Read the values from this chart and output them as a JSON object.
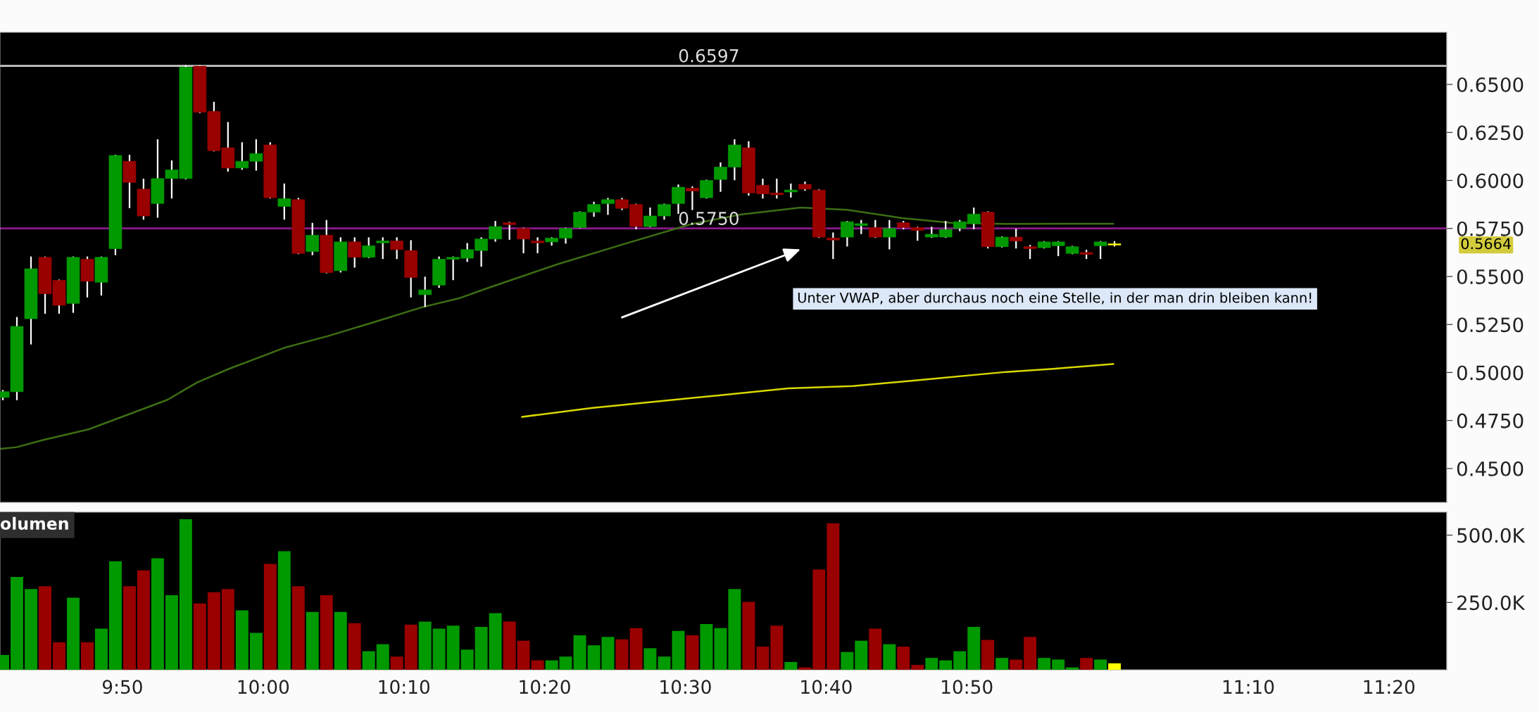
{
  "chart_data": [
    {
      "type": "candlestick",
      "xlim": [
        9.6883,
        11.4017
      ],
      "ylim": [
        0.4324,
        0.6771
      ],
      "yticks": [
        {
          "value": 0.45,
          "label": "0.4500"
        },
        {
          "value": 0.475,
          "label": "0.4750"
        },
        {
          "value": 0.5,
          "label": "0.5000"
        },
        {
          "value": 0.525,
          "label": "0.5250"
        },
        {
          "value": 0.55,
          "label": "0.5500"
        },
        {
          "value": 0.575,
          "label": "0.5750"
        },
        {
          "value": 0.6,
          "label": "0.6000"
        },
        {
          "value": 0.625,
          "label": "0.6250"
        },
        {
          "value": 0.65,
          "label": "0.6500"
        }
      ],
      "tick_labels": "y",
      "grid": false,
      "legend": false,
      "x": [
        9.6917,
        9.7083,
        9.725,
        9.7417,
        9.7583,
        9.775,
        9.7917,
        9.8083,
        9.825,
        9.8417,
        9.8583,
        9.875,
        9.8917,
        9.9083,
        9.925,
        9.9417,
        9.9583,
        9.975,
        9.9917,
        10.0083,
        10.025,
        10.0417,
        10.0583,
        10.075,
        10.0917,
        10.1083,
        10.125,
        10.1417,
        10.1583,
        10.175,
        10.1917,
        10.2083,
        10.225,
        10.2417,
        10.2583,
        10.275,
        10.2917,
        10.3083,
        10.325,
        10.3417,
        10.3583,
        10.375,
        10.3917,
        10.4083,
        10.425,
        10.4417,
        10.4583,
        10.475,
        10.4917,
        10.5083,
        10.525,
        10.5417,
        10.5583,
        10.575,
        10.5917,
        10.6083,
        10.625,
        10.6417,
        10.6583,
        10.675,
        10.6917,
        10.7083,
        10.725,
        10.7417,
        10.7583,
        10.775,
        10.7917,
        10.8083,
        10.825,
        10.8417,
        10.8583,
        10.875,
        10.8917,
        10.9083,
        10.925,
        10.9417,
        10.9583,
        10.975,
        10.9917,
        11.0083
      ],
      "series": [
        {
          "type": "line",
          "color": "#3d6e12",
          "x": [
            9.6883,
            9.708,
            9.739,
            9.7933,
            9.84,
            9.8867,
            9.9217,
            9.96,
            10.0267,
            10.0767,
            10.135,
            10.1883,
            10.2317,
            10.27,
            10.3495,
            10.4267,
            10.505,
            10.5633,
            10.6367,
            10.6917,
            10.7567,
            10.815,
            10.88,
            11.0067
          ],
          "values": [
            0.4602,
            0.4611,
            0.4648,
            0.4704,
            0.4781,
            0.4858,
            0.4948,
            0.502,
            0.5131,
            0.519,
            0.5267,
            0.534,
            0.5386,
            0.5446,
            0.5565,
            0.5668,
            0.577,
            0.5821,
            0.5859,
            0.5847,
            0.5804,
            0.5779,
            0.5774,
            0.5775
          ]
        },
        {
          "type": "line",
          "color": "#d8d800",
          "x": [
            10.3067,
            10.3883,
            10.505,
            10.6217,
            10.6983,
            10.7767,
            10.88,
            10.9383,
            11.0067
          ],
          "values": [
            0.4769,
            0.4815,
            0.4866,
            0.4917,
            0.4929,
            0.496,
            0.5003,
            0.502,
            0.5044
          ]
        },
        {
          "type": "candlestick",
          "ohlc": [
            [
              0.487,
              0.4905,
              0.486,
              0.49
            ],
            [
              0.49,
              0.5285,
              0.486,
              0.524
            ],
            [
              0.528,
              0.56,
              0.515,
              0.554
            ],
            [
              0.56,
              0.56,
              0.531,
              0.541
            ],
            [
              0.548,
              0.548,
              0.531,
              0.535
            ],
            [
              0.536,
              0.56,
              0.5315,
              0.56
            ],
            [
              0.559,
              0.56,
              0.5395,
              0.5475
            ],
            [
              0.547,
              0.56,
              0.5405,
              0.56
            ],
            [
              0.5645,
              0.613,
              0.5615,
              0.613
            ],
            [
              0.61,
              0.613,
              0.586,
              0.599
            ],
            [
              0.5955,
              0.6005,
              0.58,
              0.5815
            ],
            [
              0.588,
              0.621,
              0.581,
              0.601
            ],
            [
              0.601,
              0.61,
              0.591,
              0.6055
            ],
            [
              0.601,
              0.6597,
              0.601,
              0.659
            ],
            [
              0.6595,
              0.6597,
              0.6355,
              0.6355
            ],
            [
              0.636,
              0.6405,
              0.6155,
              0.6155
            ],
            [
              0.617,
              0.63,
              0.605,
              0.6065
            ],
            [
              0.6065,
              0.6195,
              0.606,
              0.61
            ],
            [
              0.61,
              0.621,
              0.6055,
              0.614
            ],
            [
              0.6185,
              0.6195,
              0.591,
              0.591
            ],
            [
              0.5865,
              0.598,
              0.58,
              0.5905
            ],
            [
              0.59,
              0.5905,
              0.562,
              0.562
            ],
            [
              0.563,
              0.5775,
              0.5615,
              0.5715
            ],
            [
              0.5715,
              0.579,
              0.552,
              0.552
            ],
            [
              0.553,
              0.57,
              0.5525,
              0.568
            ],
            [
              0.568,
              0.57,
              0.555,
              0.56
            ],
            [
              0.56,
              0.57,
              0.56,
              0.566
            ],
            [
              0.5675,
              0.57,
              0.5595,
              0.5685
            ],
            [
              0.5685,
              0.57,
              0.5595,
              0.564
            ],
            [
              0.5635,
              0.5685,
              0.5395,
              0.5495
            ],
            [
              0.5405,
              0.5495,
              0.5345,
              0.543
            ],
            [
              0.5455,
              0.56,
              0.5445,
              0.559
            ],
            [
              0.559,
              0.56,
              0.5485,
              0.56
            ],
            [
              0.5595,
              0.567,
              0.558,
              0.564
            ],
            [
              0.5635,
              0.57,
              0.5555,
              0.5695
            ],
            [
              0.5695,
              0.5785,
              0.5685,
              0.576
            ],
            [
              0.578,
              0.578,
              0.5695,
              0.577
            ],
            [
              0.575,
              0.575,
              0.5625,
              0.5695
            ],
            [
              0.5685,
              0.57,
              0.5625,
              0.5675
            ],
            [
              0.568,
              0.57,
              0.5665,
              0.57
            ],
            [
              0.57,
              0.575,
              0.5675,
              0.575
            ],
            [
              0.5755,
              0.5835,
              0.5755,
              0.5835
            ],
            [
              0.5835,
              0.5885,
              0.5815,
              0.5875
            ],
            [
              0.588,
              0.5905,
              0.5825,
              0.59
            ],
            [
              0.59,
              0.5905,
              0.585,
              0.5855
            ],
            [
              0.5875,
              0.5875,
              0.575,
              0.576
            ],
            [
              0.576,
              0.5855,
              0.576,
              0.5815
            ],
            [
              0.5815,
              0.5875,
              0.58,
              0.5875
            ],
            [
              0.588,
              0.5975,
              0.583,
              0.5965
            ],
            [
              0.596,
              0.5965,
              0.585,
              0.5945
            ],
            [
              0.591,
              0.6,
              0.591,
              0.6
            ],
            [
              0.6005,
              0.609,
              0.5945,
              0.607
            ],
            [
              0.607,
              0.621,
              0.6005,
              0.6185
            ],
            [
              0.617,
              0.62,
              0.5925,
              0.5935
            ],
            [
              0.5975,
              0.6005,
              0.591,
              0.593
            ],
            [
              0.5935,
              0.6005,
              0.591,
              0.5925
            ],
            [
              0.594,
              0.598,
              0.5915,
              0.595
            ],
            [
              0.598,
              0.599,
              0.595,
              0.5955
            ],
            [
              0.595,
              0.595,
              0.5705,
              0.5705
            ],
            [
              0.57,
              0.5725,
              0.5595,
              0.569
            ],
            [
              0.5705,
              0.5785,
              0.566,
              0.5785
            ],
            [
              0.5765,
              0.579,
              0.5725,
              0.5775
            ],
            [
              0.5755,
              0.579,
              0.5705,
              0.5705
            ],
            [
              0.5705,
              0.579,
              0.5645,
              0.575
            ],
            [
              0.578,
              0.5785,
              0.575,
              0.5755
            ],
            [
              0.5755,
              0.5755,
              0.569,
              0.574
            ],
            [
              0.5705,
              0.5755,
              0.5705,
              0.572
            ],
            [
              0.5705,
              0.5785,
              0.5705,
              0.5745
            ],
            [
              0.575,
              0.579,
              0.574,
              0.5785
            ],
            [
              0.5775,
              0.5855,
              0.575,
              0.5825
            ],
            [
              0.5835,
              0.5835,
              0.565,
              0.5655
            ],
            [
              0.5655,
              0.5705,
              0.5655,
              0.5705
            ],
            [
              0.5705,
              0.5745,
              0.565,
              0.5685
            ],
            [
              0.5655,
              0.566,
              0.5595,
              0.5645
            ],
            [
              0.565,
              0.568,
              0.565,
              0.568
            ],
            [
              0.566,
              0.568,
              0.561,
              0.568
            ],
            [
              0.562,
              0.5655,
              0.562,
              0.5655
            ],
            [
              0.5625,
              0.5635,
              0.5595,
              0.5615
            ],
            [
              0.566,
              0.568,
              0.5595,
              0.568
            ],
            [
              0.567,
              0.568,
              0.566,
              0.5664
            ]
          ],
          "colors": [
            "#009900",
            "#009900",
            "#009900",
            "#990000",
            "#990000",
            "#009900",
            "#990000",
            "#009900",
            "#009900",
            "#990000",
            "#990000",
            "#009900",
            "#009900",
            "#009900",
            "#990000",
            "#990000",
            "#990000",
            "#009900",
            "#009900",
            "#990000",
            "#009900",
            "#990000",
            "#009900",
            "#990000",
            "#009900",
            "#990000",
            "#009900",
            "#009900",
            "#990000",
            "#990000",
            "#009900",
            "#009900",
            "#009900",
            "#009900",
            "#009900",
            "#009900",
            "#990000",
            "#990000",
            "#990000",
            "#009900",
            "#009900",
            "#009900",
            "#009900",
            "#009900",
            "#990000",
            "#990000",
            "#009900",
            "#009900",
            "#009900",
            "#990000",
            "#009900",
            "#009900",
            "#009900",
            "#990000",
            "#990000",
            "#990000",
            "#009900",
            "#990000",
            "#990000",
            "#990000",
            "#009900",
            "#009900",
            "#990000",
            "#009900",
            "#990000",
            "#990000",
            "#009900",
            "#009900",
            "#009900",
            "#009900",
            "#990000",
            "#009900",
            "#990000",
            "#990000",
            "#009900",
            "#009900",
            "#009900",
            "#990000",
            "#009900",
            "#ffff00"
          ]
        }
      ],
      "ref_lines": [
        {
          "axis": "y",
          "value": 0.6597,
          "label": "0.6597",
          "color": "#c8c8c8"
        },
        {
          "axis": "y",
          "value": 0.575,
          "label": "0.5750",
          "color": "#8a1a8a"
        }
      ],
      "annotations": [
        "Unter VWAP, aber durchaus noch eine Stelle, in der man drin bleiben kann!",
        "0.5664"
      ]
    },
    {
      "type": "bar",
      "title": "olumen",
      "xlim": [
        9.6883,
        11.4017
      ],
      "ylim": [
        0,
        585000
      ],
      "yticks": [
        {
          "value": 250000,
          "label": "250.0K"
        },
        {
          "value": 500000,
          "label": "500.0K"
        }
      ],
      "xticks": [
        {
          "value": 9.8333,
          "label": "9:50"
        },
        {
          "value": 10.0,
          "label": "10:00"
        },
        {
          "value": 10.1667,
          "label": "10:10"
        },
        {
          "value": 10.3333,
          "label": "10:20"
        },
        {
          "value": 10.5,
          "label": "10:30"
        },
        {
          "value": 10.6667,
          "label": "10:40"
        },
        {
          "value": 10.8333,
          "label": "10:50"
        },
        {
          "value": 11.1667,
          "label": "11:10"
        },
        {
          "value": 11.3333,
          "label": "11:20"
        }
      ],
      "grid": false,
      "legend": false,
      "x": [
        9.6917,
        9.7083,
        9.725,
        9.7417,
        9.7583,
        9.775,
        9.7917,
        9.8083,
        9.825,
        9.8417,
        9.8583,
        9.875,
        9.8917,
        9.9083,
        9.925,
        9.9417,
        9.9583,
        9.975,
        9.9917,
        10.0083,
        10.025,
        10.0417,
        10.0583,
        10.075,
        10.0917,
        10.1083,
        10.125,
        10.1417,
        10.1583,
        10.175,
        10.1917,
        10.2083,
        10.225,
        10.2417,
        10.2583,
        10.275,
        10.2917,
        10.3083,
        10.325,
        10.3417,
        10.3583,
        10.375,
        10.3917,
        10.4083,
        10.425,
        10.4417,
        10.4583,
        10.475,
        10.4917,
        10.5083,
        10.525,
        10.5417,
        10.5583,
        10.575,
        10.5917,
        10.6083,
        10.625,
        10.6417,
        10.6583,
        10.675,
        10.6917,
        10.7083,
        10.725,
        10.7417,
        10.7583,
        10.775,
        10.7917,
        10.8083,
        10.825,
        10.8417,
        10.8583,
        10.875,
        10.8917,
        10.9083,
        10.925,
        10.9417,
        10.9583,
        10.975,
        10.9917,
        11.0083
      ],
      "values": [
        55000,
        345000,
        300000,
        310000,
        102000,
        268000,
        102000,
        153000,
        403000,
        310000,
        369000,
        414000,
        277000,
        559000,
        246000,
        288000,
        300000,
        221000,
        137000,
        393000,
        440000,
        310000,
        215000,
        277000,
        215000,
        173000,
        69000,
        95000,
        49000,
        168000,
        179000,
        153000,
        164000,
        75000,
        159000,
        210000,
        179000,
        108000,
        35000,
        35000,
        49000,
        128000,
        91000,
        122000,
        113000,
        155000,
        80000,
        49000,
        144000,
        128000,
        170000,
        155000,
        300000,
        252000,
        86000,
        164000,
        29000,
        9000,
        372000,
        544000,
        66000,
        108000,
        153000,
        95000,
        86000,
        18000,
        44000,
        35000,
        69000,
        159000,
        111000,
        44000,
        38000,
        122000,
        44000,
        38000,
        9000,
        44000,
        38000,
        24000
      ],
      "colors": [
        "#009900",
        "#009900",
        "#009900",
        "#990000",
        "#990000",
        "#009900",
        "#990000",
        "#009900",
        "#009900",
        "#990000",
        "#990000",
        "#009900",
        "#009900",
        "#009900",
        "#990000",
        "#990000",
        "#990000",
        "#009900",
        "#009900",
        "#990000",
        "#009900",
        "#990000",
        "#009900",
        "#990000",
        "#009900",
        "#990000",
        "#009900",
        "#009900",
        "#990000",
        "#990000",
        "#009900",
        "#009900",
        "#009900",
        "#009900",
        "#009900",
        "#009900",
        "#990000",
        "#990000",
        "#990000",
        "#009900",
        "#009900",
        "#009900",
        "#009900",
        "#009900",
        "#990000",
        "#990000",
        "#009900",
        "#009900",
        "#009900",
        "#990000",
        "#009900",
        "#009900",
        "#009900",
        "#990000",
        "#990000",
        "#990000",
        "#009900",
        "#990000",
        "#990000",
        "#990000",
        "#009900",
        "#009900",
        "#990000",
        "#009900",
        "#990000",
        "#990000",
        "#009900",
        "#009900",
        "#009900",
        "#009900",
        "#990000",
        "#009900",
        "#990000",
        "#990000",
        "#009900",
        "#009900",
        "#009900",
        "#990000",
        "#009900",
        "#ffff00"
      ]
    }
  ]
}
